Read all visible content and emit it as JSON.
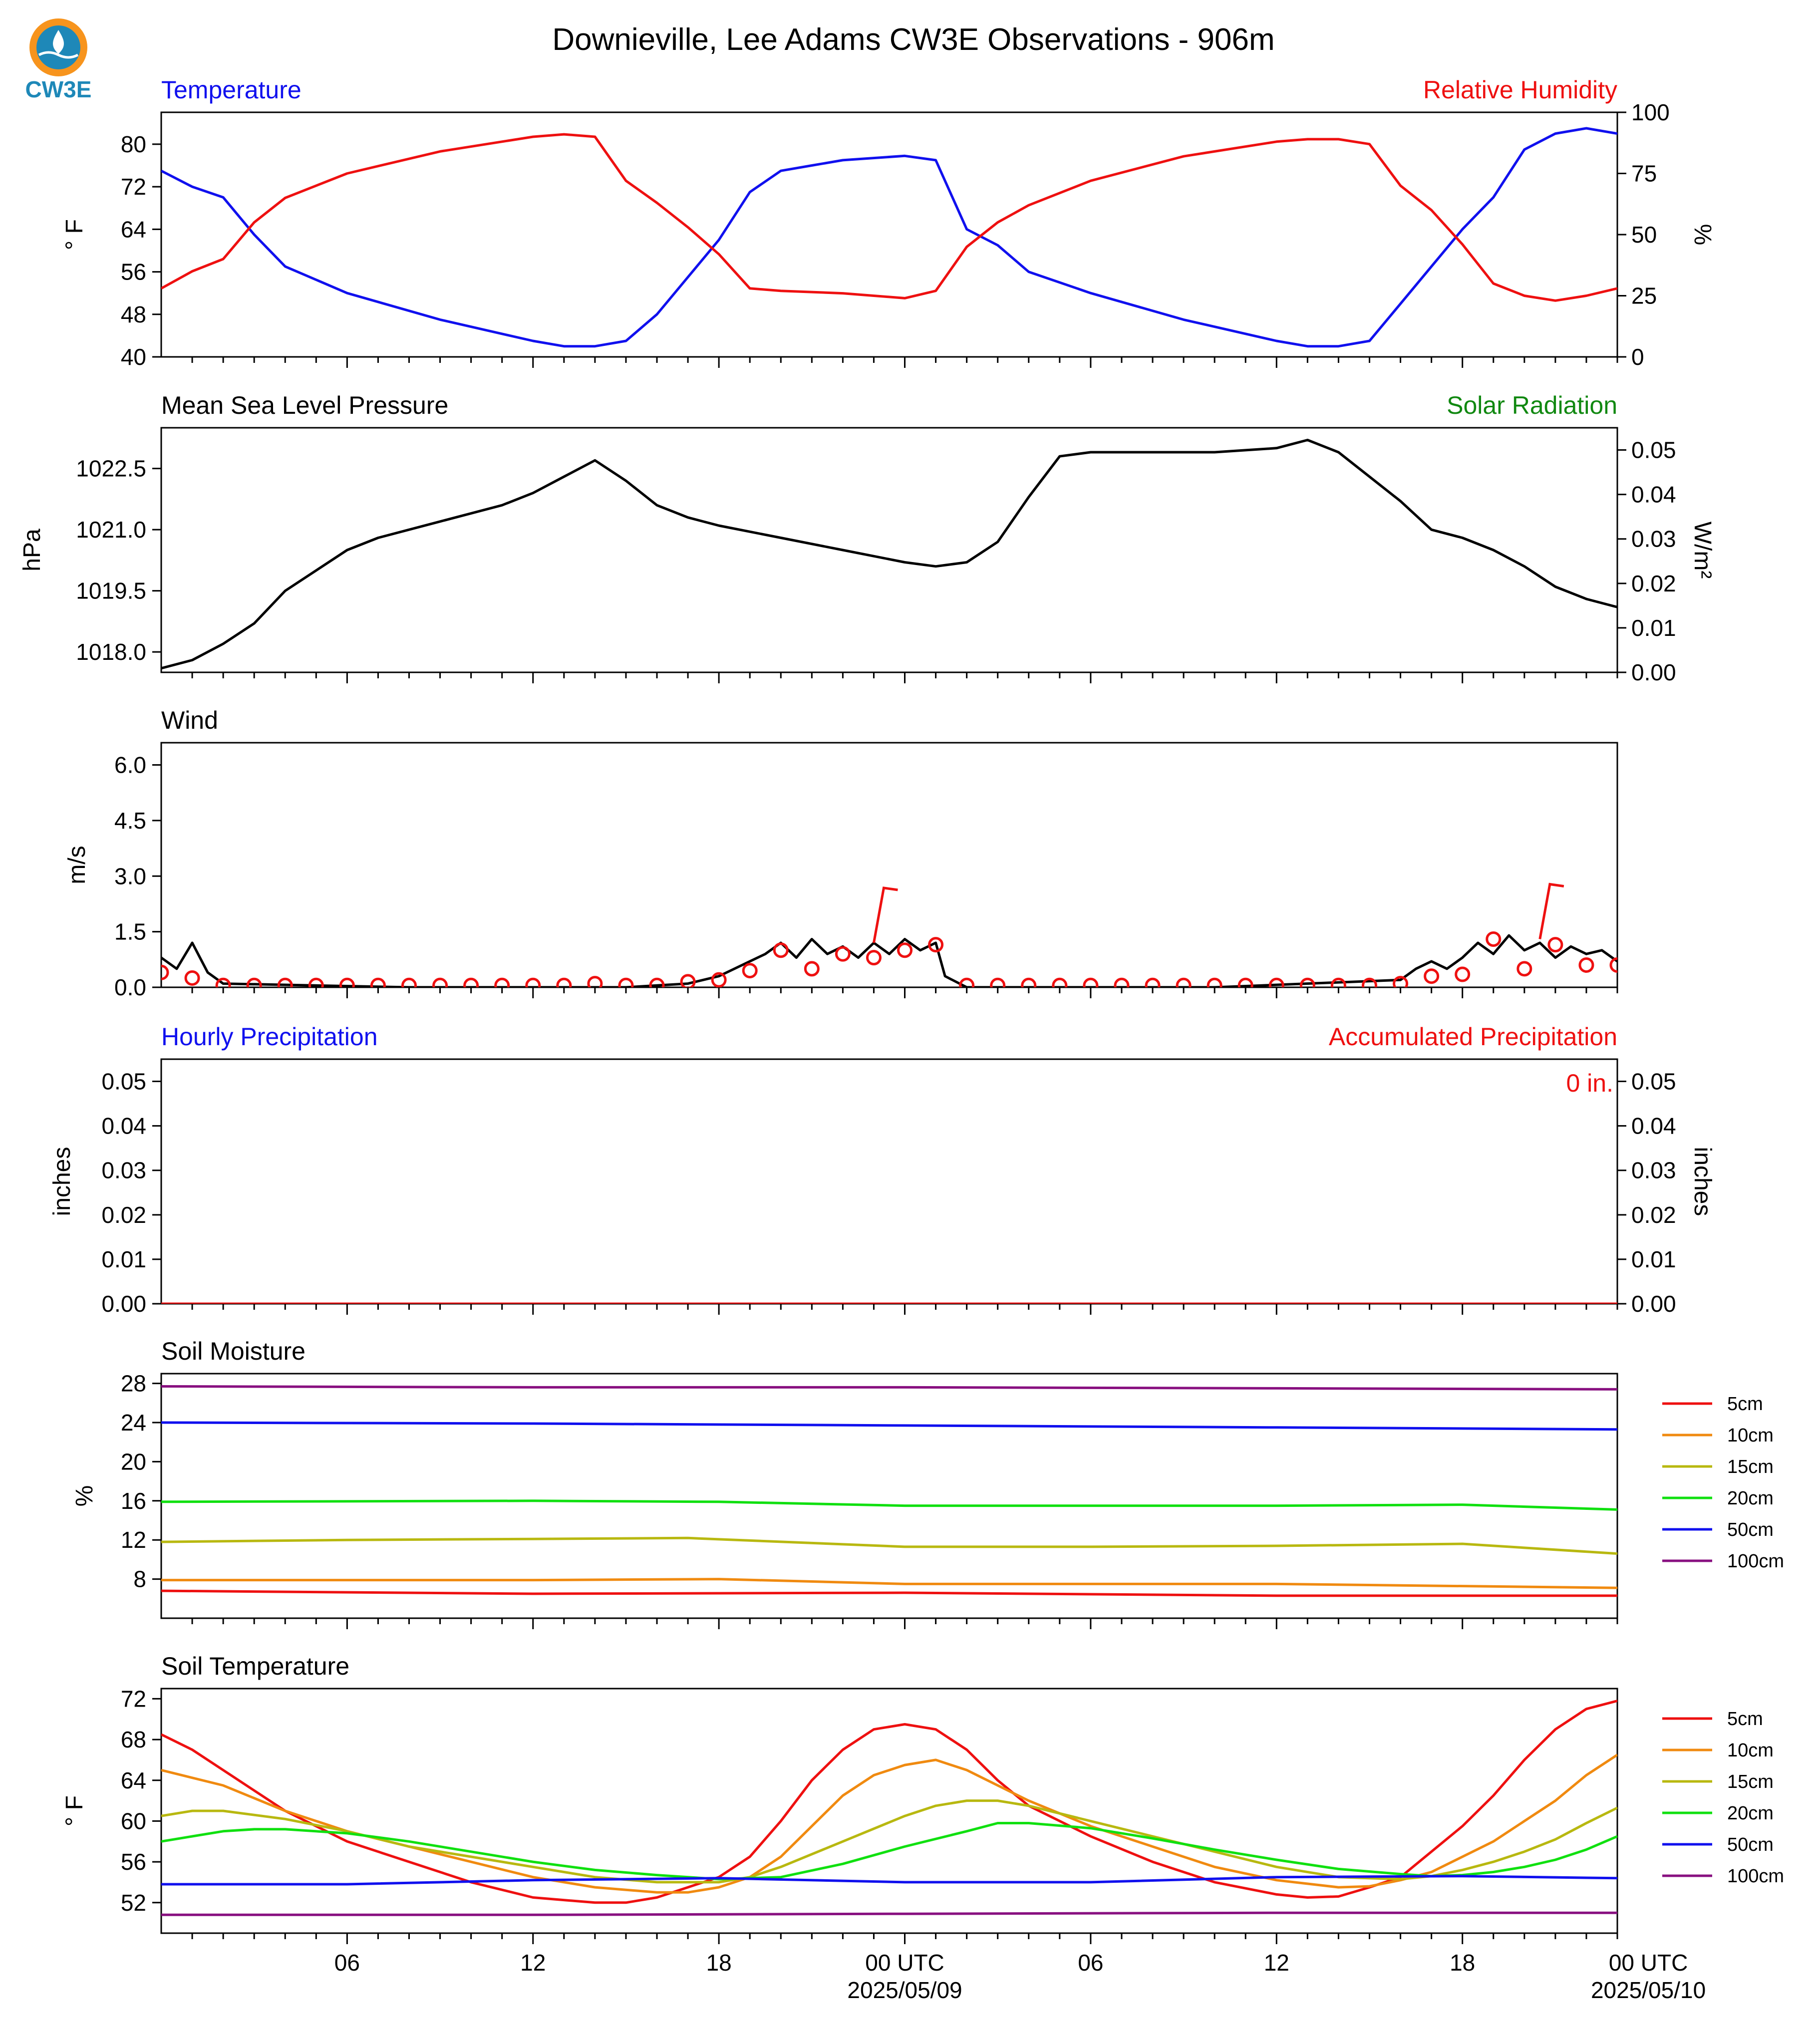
{
  "title": "Downieville, Lee Adams CW3E Observations - 906m",
  "logo": {
    "text": "CW3E",
    "color": "#1e88b8",
    "accent": "#f7941d"
  },
  "time_axis": {
    "hour_labels": [
      "06",
      "12",
      "18",
      "00 UTC",
      "06",
      "12",
      "18",
      "00 UTC"
    ],
    "date_labels": [
      "2025/05/09",
      "2025/05/10"
    ]
  },
  "chart_data": [
    {
      "id": "temperature",
      "type": "line",
      "title_left": "Temperature",
      "title_left_color": "#1010ee",
      "title_right": "Relative Humidity",
      "title_right_color": "#ee1010",
      "ylabel_left": "° F",
      "ylabel_right": "%",
      "y_left_ticks": [
        "40",
        "48",
        "56",
        "64",
        "72",
        "80"
      ],
      "y_right_ticks": [
        "0",
        "25",
        "50",
        "75",
        "100"
      ],
      "ylim_left": [
        40,
        86
      ],
      "ylim_right": [
        0,
        100
      ],
      "series": [
        {
          "color": "#1010ee",
          "axis": "left",
          "x": [
            0,
            1,
            2,
            3,
            4,
            6,
            9,
            12,
            13,
            14,
            15,
            16,
            17,
            18,
            19,
            20,
            21,
            22,
            24,
            25,
            26,
            27,
            28,
            30,
            33,
            36,
            37,
            38,
            39,
            40,
            41,
            42,
            43,
            44,
            45,
            46,
            47
          ],
          "y": [
            75,
            72,
            70,
            63,
            57,
            52,
            47,
            43,
            42,
            42,
            43,
            48,
            55,
            62,
            71,
            75,
            76,
            77,
            77.8,
            77,
            64,
            61,
            56,
            52,
            47,
            43,
            42,
            42,
            43,
            50,
            57,
            64,
            70,
            79,
            82,
            83,
            82
          ]
        },
        {
          "color": "#ee1010",
          "axis": "right",
          "x": [
            0,
            1,
            2,
            3,
            4,
            6,
            9,
            12,
            13,
            14,
            15,
            16,
            17,
            18,
            19,
            20,
            22,
            24,
            25,
            26,
            27,
            28,
            30,
            33,
            36,
            37,
            38,
            39,
            40,
            41,
            42,
            43,
            44,
            45,
            46,
            47
          ],
          "y": [
            28,
            35,
            40,
            55,
            65,
            75,
            84,
            90,
            91,
            90,
            72,
            63,
            53,
            42,
            28,
            27,
            26,
            24,
            27,
            45,
            55,
            62,
            72,
            82,
            88,
            89,
            89,
            87,
            70,
            60,
            46,
            30,
            25,
            23,
            25,
            28
          ]
        }
      ]
    },
    {
      "id": "pressure",
      "type": "line",
      "title_left": "Mean Sea Level Pressure",
      "title_left_color": "#000000",
      "title_right": "Solar Radiation",
      "title_right_color": "#108810",
      "ylabel_left": "hPa",
      "ylabel_right": "W/m²",
      "y_left_ticks": [
        "1018.0",
        "1019.5",
        "1021.0",
        "1022.5"
      ],
      "y_right_ticks": [
        "0.00",
        "0.01",
        "0.02",
        "0.03",
        "0.04",
        "0.05"
      ],
      "ylim_left": [
        1017.5,
        1023.5
      ],
      "ylim_right": [
        0,
        0.055
      ],
      "series": [
        {
          "color": "#000000",
          "axis": "left",
          "x": [
            0,
            1,
            2,
            3,
            4,
            6,
            7,
            9,
            11,
            12,
            13,
            14,
            15,
            16,
            17,
            18,
            20,
            22,
            24,
            25,
            26,
            27,
            28,
            29,
            30,
            32,
            34,
            36,
            37,
            38,
            39,
            40,
            41,
            42,
            43,
            44,
            45,
            46,
            47
          ],
          "y": [
            1017.6,
            1017.8,
            1018.2,
            1018.7,
            1019.5,
            1020.5,
            1020.8,
            1021.2,
            1021.6,
            1021.9,
            1022.3,
            1022.7,
            1022.2,
            1021.6,
            1021.3,
            1021.1,
            1020.8,
            1020.5,
            1020.2,
            1020.1,
            1020.2,
            1020.7,
            1021.8,
            1022.8,
            1022.9,
            1022.9,
            1022.9,
            1023.0,
            1023.2,
            1022.9,
            1022.3,
            1021.7,
            1021.0,
            1020.8,
            1020.5,
            1020.1,
            1019.6,
            1019.3,
            1019.1
          ]
        }
      ]
    },
    {
      "id": "wind",
      "type": "line",
      "title_left": "Wind",
      "title_left_color": "#000000",
      "ylabel_left": "m/s",
      "y_left_ticks": [
        "0.0",
        "1.5",
        "3.0",
        "4.5",
        "6.0"
      ],
      "ylim_left": [
        0,
        6.6
      ],
      "series": [
        {
          "color": "#000000",
          "axis": "left",
          "x": [
            0,
            0.5,
            1,
            1.5,
            2,
            8,
            15,
            16,
            17,
            18,
            18.5,
            19,
            19.5,
            20,
            20.5,
            21,
            21.5,
            22,
            22.5,
            23,
            23.5,
            24,
            24.5,
            25,
            25.3,
            26,
            34,
            40,
            40.5,
            41,
            41.5,
            42,
            42.5,
            43,
            43.5,
            44,
            44.5,
            45,
            45.5,
            46,
            46.5,
            47
          ],
          "y": [
            0.8,
            0.5,
            1.2,
            0.4,
            0.1,
            0.0,
            0.0,
            0.05,
            0.1,
            0.3,
            0.5,
            0.7,
            0.9,
            1.2,
            0.8,
            1.3,
            0.9,
            1.1,
            0.8,
            1.2,
            0.9,
            1.3,
            1.0,
            1.2,
            0.3,
            0.0,
            0.0,
            0.2,
            0.5,
            0.7,
            0.5,
            0.8,
            1.2,
            0.9,
            1.4,
            1.0,
            1.2,
            0.8,
            1.1,
            0.9,
            1.0,
            0.7
          ]
        },
        {
          "color": "#ee1010",
          "axis": "left",
          "style": "circles",
          "x": [
            0,
            1,
            2,
            3,
            4,
            5,
            6,
            7,
            8,
            9,
            10,
            11,
            12,
            13,
            14,
            15,
            16,
            17,
            18,
            19,
            20,
            21,
            22,
            23,
            24,
            25,
            26,
            27,
            28,
            29,
            30,
            31,
            32,
            33,
            34,
            35,
            36,
            37,
            38,
            39,
            40,
            41,
            42,
            43,
            44,
            45,
            46,
            47
          ],
          "y": [
            0.4,
            0.25,
            0.05,
            0.05,
            0.05,
            0.05,
            0.05,
            0.05,
            0.05,
            0.05,
            0.05,
            0.05,
            0.05,
            0.05,
            0.1,
            0.05,
            0.05,
            0.15,
            0.2,
            0.45,
            1.0,
            0.5,
            0.9,
            0.8,
            1.0,
            1.15,
            0.05,
            0.05,
            0.05,
            0.05,
            0.05,
            0.05,
            0.05,
            0.05,
            0.05,
            0.05,
            0.05,
            0.05,
            0.05,
            0.05,
            0.1,
            0.3,
            0.35,
            1.3,
            0.5,
            1.15,
            0.6,
            0.6
          ]
        },
        {
          "color": "#ee1010",
          "axis": "left",
          "style": "barbs",
          "x": [
            23,
            44.5
          ],
          "y": [
            1.2,
            1.3
          ]
        }
      ]
    },
    {
      "id": "precip",
      "type": "line",
      "title_left": "Hourly Precipitation",
      "title_left_color": "#1010ee",
      "title_right": "Accumulated Precipitation",
      "title_right_color": "#ee1010",
      "ylabel_left": "inches",
      "ylabel_right": "inches",
      "annotation": "0 in.",
      "annotation_color": "#ee1010",
      "y_left_ticks": [
        "0.00",
        "0.01",
        "0.02",
        "0.03",
        "0.04",
        "0.05"
      ],
      "y_right_ticks": [
        "0.00",
        "0.01",
        "0.02",
        "0.03",
        "0.04",
        "0.05"
      ],
      "ylim_left": [
        0,
        0.055
      ],
      "ylim_right": [
        0,
        0.055
      ],
      "series": [
        {
          "color": "#ee1010",
          "axis": "left",
          "x": [
            0,
            47
          ],
          "y": [
            0,
            0
          ]
        }
      ]
    },
    {
      "id": "soil_moisture",
      "type": "line",
      "title_left": "Soil Moisture",
      "title_left_color": "#000000",
      "ylabel_left": "%",
      "y_left_ticks": [
        "8",
        "12",
        "16",
        "20",
        "24",
        "28"
      ],
      "ylim_left": [
        4,
        29
      ],
      "series": [
        {
          "name": "5cm",
          "color": "#ee1010",
          "axis": "left",
          "x": [
            0,
            12,
            24,
            36,
            47
          ],
          "y": [
            6.8,
            6.5,
            6.6,
            6.3,
            6.3
          ]
        },
        {
          "name": "10cm",
          "color": "#f08a10",
          "axis": "left",
          "x": [
            0,
            12,
            18,
            24,
            36,
            47
          ],
          "y": [
            7.9,
            7.9,
            8.0,
            7.5,
            7.5,
            7.1
          ]
        },
        {
          "name": "15cm",
          "color": "#b8b810",
          "axis": "left",
          "x": [
            0,
            6,
            12,
            17,
            24,
            30,
            36,
            42,
            47
          ],
          "y": [
            11.8,
            12.0,
            12.1,
            12.2,
            11.3,
            11.3,
            11.4,
            11.6,
            10.6
          ]
        },
        {
          "name": "20cm",
          "color": "#10e010",
          "axis": "left",
          "x": [
            0,
            12,
            18,
            24,
            36,
            42,
            47
          ],
          "y": [
            15.9,
            16.0,
            15.9,
            15.5,
            15.5,
            15.6,
            15.1
          ]
        },
        {
          "name": "50cm",
          "color": "#1010ee",
          "axis": "left",
          "x": [
            0,
            12,
            24,
            36,
            47
          ],
          "y": [
            24.0,
            23.9,
            23.7,
            23.5,
            23.3
          ]
        },
        {
          "name": "100cm",
          "color": "#881080",
          "axis": "left",
          "x": [
            0,
            12,
            24,
            36,
            47
          ],
          "y": [
            27.7,
            27.6,
            27.6,
            27.5,
            27.4
          ]
        }
      ]
    },
    {
      "id": "soil_temperature",
      "type": "line",
      "title_left": "Soil Temperature",
      "title_left_color": "#000000",
      "ylabel_left": "° F",
      "y_left_ticks": [
        "52",
        "56",
        "60",
        "64",
        "68",
        "72"
      ],
      "ylim_left": [
        49,
        73
      ],
      "series": [
        {
          "name": "5cm",
          "color": "#ee1010",
          "axis": "left",
          "x": [
            0,
            1,
            2,
            3,
            4,
            6,
            8,
            10,
            12,
            14,
            15,
            16,
            17,
            18,
            19,
            20,
            21,
            22,
            23,
            24,
            25,
            26,
            27,
            28,
            30,
            32,
            34,
            36,
            37,
            38,
            39,
            40,
            41,
            42,
            43,
            44,
            45,
            46,
            47
          ],
          "y": [
            68.5,
            67,
            65,
            63,
            61,
            58,
            56,
            54,
            52.5,
            52,
            52,
            52.5,
            53.5,
            54.5,
            56.5,
            60,
            64,
            67,
            69,
            69.5,
            69,
            67,
            64,
            61.5,
            58.5,
            56,
            54,
            52.8,
            52.5,
            52.6,
            53.5,
            54.5,
            57,
            59.5,
            62.5,
            66,
            69,
            71,
            71.8
          ]
        },
        {
          "name": "10cm",
          "color": "#f08a10",
          "axis": "left",
          "x": [
            0,
            2,
            4,
            6,
            8,
            10,
            12,
            14,
            16,
            17,
            18,
            19,
            20,
            21,
            22,
            23,
            24,
            25,
            26,
            27,
            28,
            30,
            32,
            34,
            36,
            38,
            39,
            40,
            41,
            42,
            43,
            44,
            45,
            46,
            47
          ],
          "y": [
            65,
            63.5,
            61,
            59,
            57.5,
            56,
            54.5,
            53.5,
            53,
            53,
            53.5,
            54.5,
            56.5,
            59.5,
            62.5,
            64.5,
            65.5,
            66,
            65,
            63.5,
            62,
            59.5,
            57.5,
            55.5,
            54.2,
            53.5,
            53.6,
            54.2,
            55,
            56.5,
            58,
            60,
            62,
            64.5,
            66.5
          ]
        },
        {
          "name": "15cm",
          "color": "#b8b810",
          "axis": "left",
          "x": [
            0,
            1,
            2,
            4,
            6,
            8,
            10,
            12,
            14,
            16,
            18,
            19,
            20,
            22,
            24,
            25,
            26,
            27,
            28,
            30,
            32,
            34,
            36,
            38,
            40,
            41,
            42,
            43,
            44,
            45,
            46,
            47
          ],
          "y": [
            60.5,
            61,
            61,
            60.2,
            59,
            57.5,
            56.5,
            55.5,
            54.5,
            54,
            54,
            54.5,
            55.5,
            58,
            60.5,
            61.5,
            62,
            62,
            61.5,
            60,
            58.5,
            57,
            55.5,
            54.5,
            54.3,
            54.6,
            55.2,
            56,
            57,
            58.2,
            59.8,
            61.3
          ]
        },
        {
          "name": "20cm",
          "color": "#10e010",
          "axis": "left",
          "x": [
            0,
            1,
            2,
            3,
            4,
            6,
            8,
            10,
            12,
            14,
            16,
            18,
            20,
            22,
            24,
            26,
            27,
            28,
            30,
            32,
            34,
            36,
            38,
            40,
            41,
            42,
            43,
            44,
            45,
            46,
            47
          ],
          "y": [
            58,
            58.5,
            59,
            59.2,
            59.2,
            58.8,
            58,
            57,
            56,
            55.2,
            54.7,
            54.3,
            54.5,
            55.8,
            57.5,
            59,
            59.8,
            59.8,
            59.3,
            58.3,
            57.2,
            56.2,
            55.3,
            54.8,
            54.6,
            54.7,
            55,
            55.5,
            56.2,
            57.2,
            58.5
          ]
        },
        {
          "name": "50cm",
          "color": "#1010ee",
          "axis": "left",
          "x": [
            0,
            6,
            12,
            18,
            24,
            30,
            36,
            42,
            47
          ],
          "y": [
            53.8,
            53.8,
            54.2,
            54.4,
            54.0,
            54.0,
            54.5,
            54.6,
            54.4
          ]
        },
        {
          "name": "100cm",
          "color": "#881080",
          "axis": "left",
          "x": [
            0,
            12,
            24,
            36,
            47
          ],
          "y": [
            50.8,
            50.8,
            50.9,
            51.0,
            51.0
          ]
        }
      ]
    }
  ]
}
